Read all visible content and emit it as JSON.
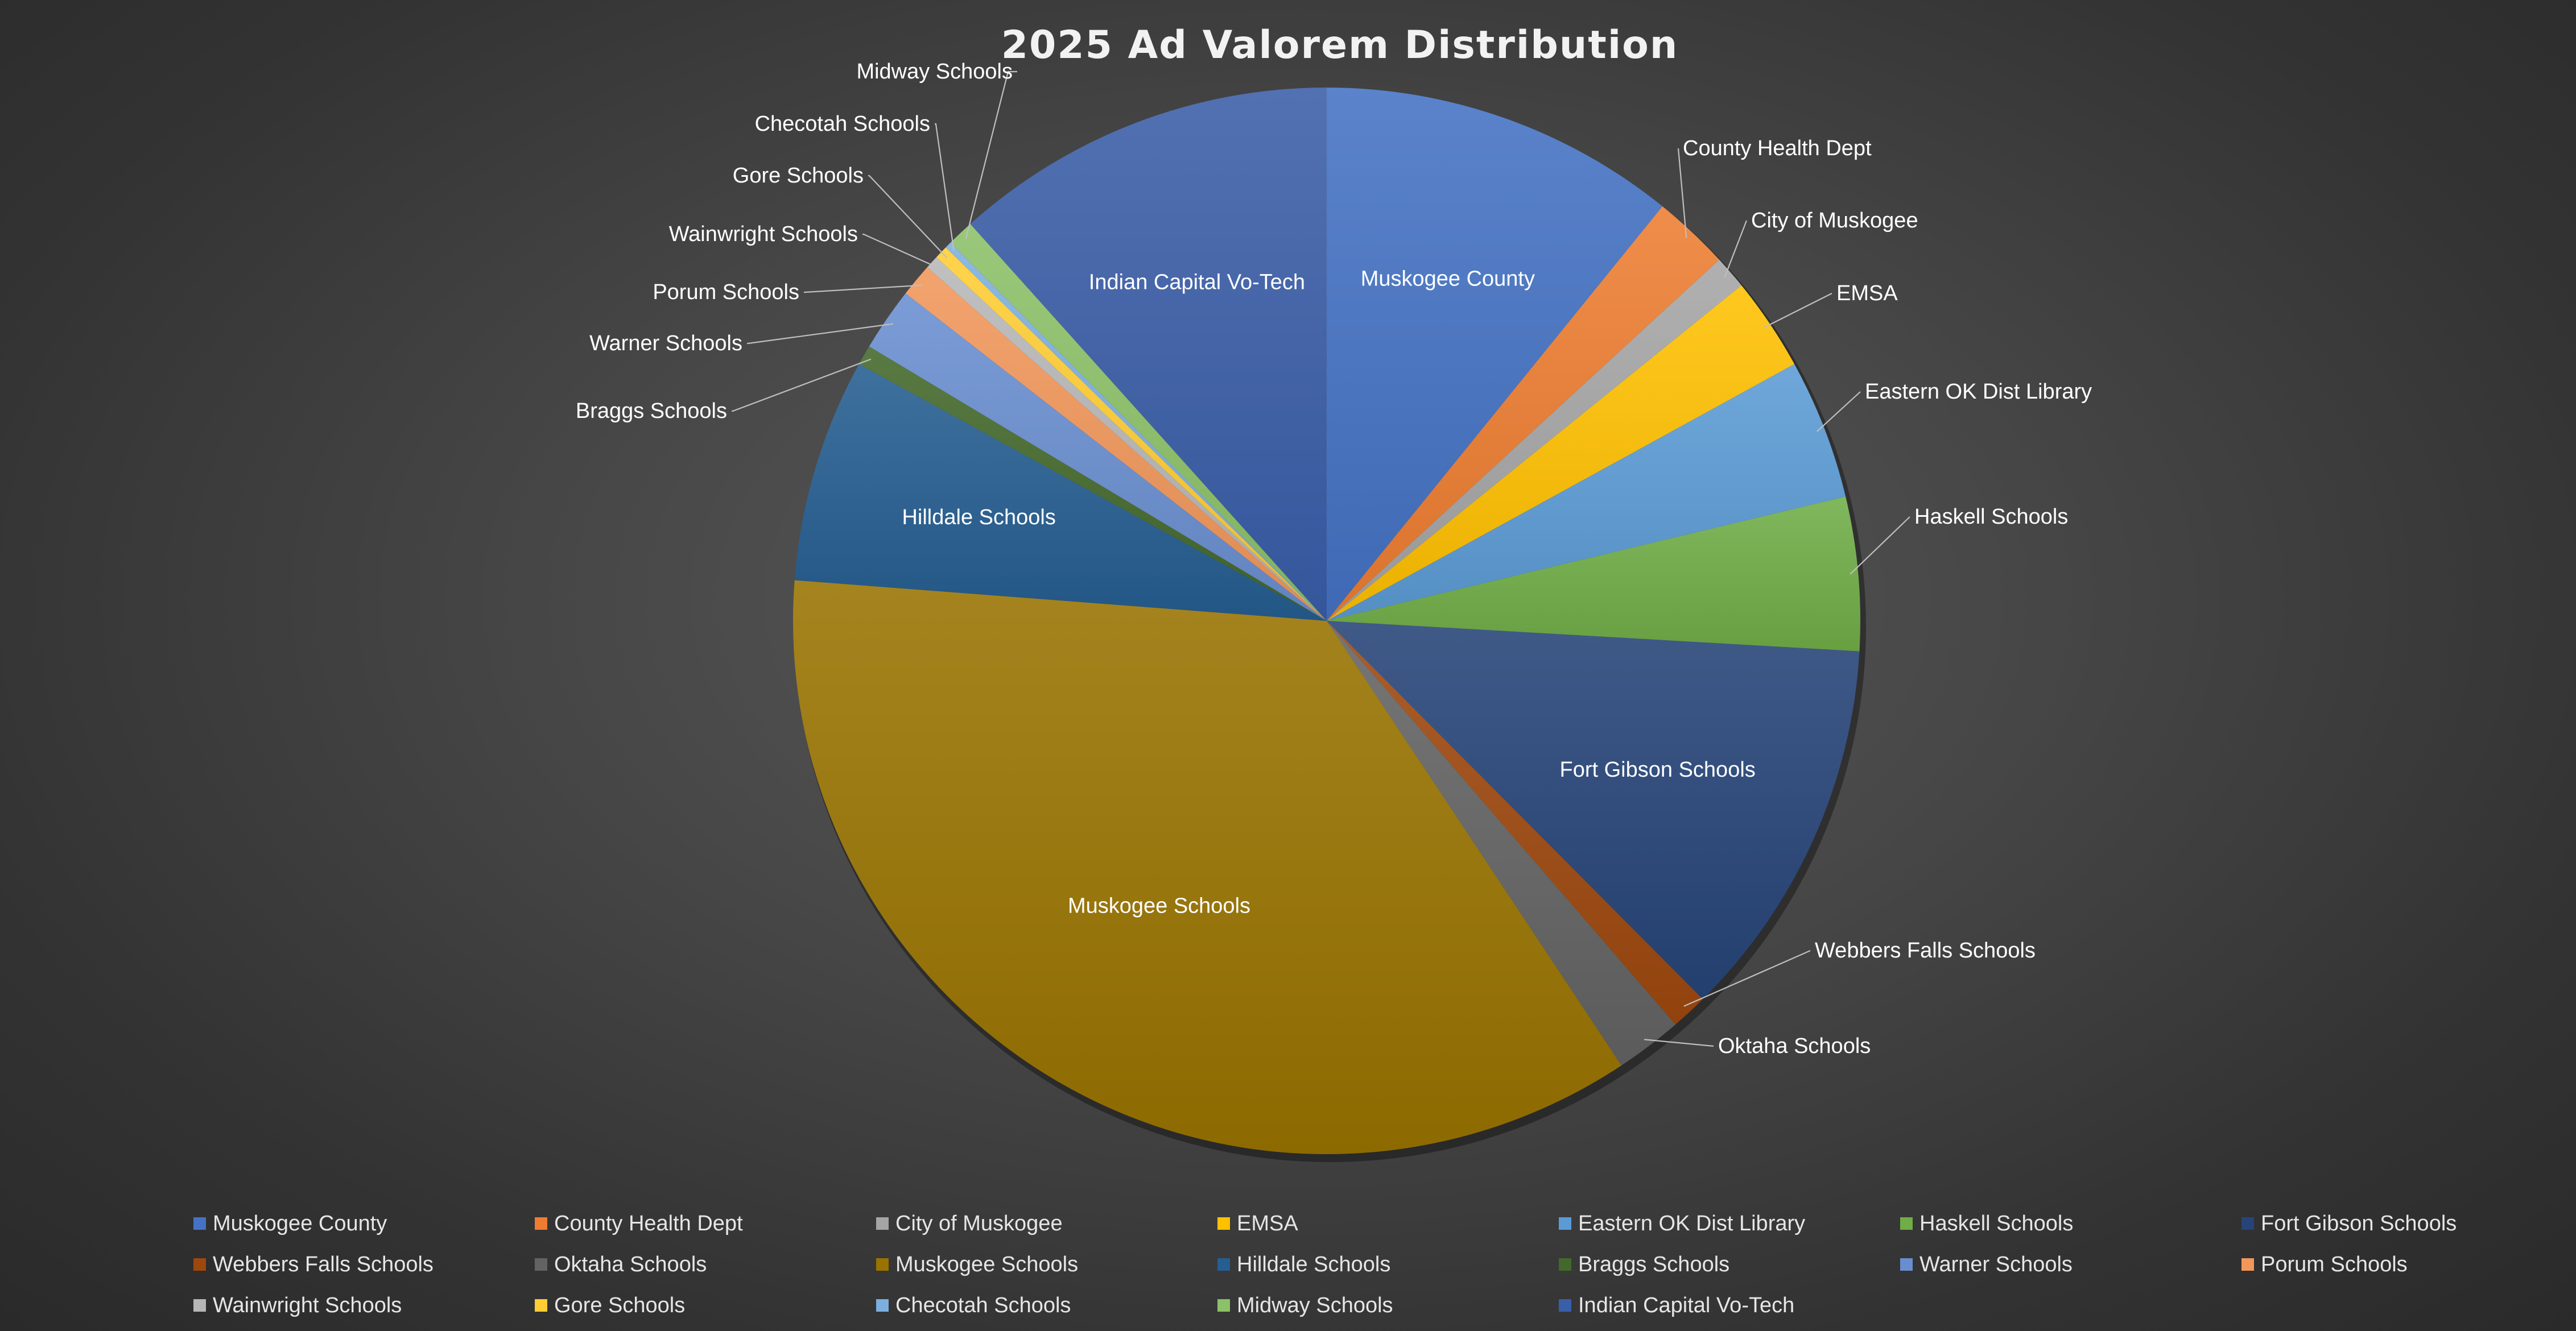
{
  "chart_data": {
    "type": "pie",
    "title": "2025 Ad Valorem Distribution",
    "legend_position": "bottom",
    "slices": [
      {
        "label": "Muskogee County",
        "value": 10.7,
        "color": "#4472c4",
        "label_mode": "inside"
      },
      {
        "label": "County Health Dept",
        "value": 2.3,
        "color": "#ed7d31",
        "label_mode": "outside"
      },
      {
        "label": "City of Muskogee",
        "value": 1.0,
        "color": "#a5a5a5",
        "label_mode": "outside"
      },
      {
        "label": "EMSA",
        "value": 2.8,
        "color": "#ffc000",
        "label_mode": "outside"
      },
      {
        "label": "Eastern OK Dist Library",
        "value": 4.2,
        "color": "#5b9bd5",
        "label_mode": "outside"
      },
      {
        "label": "Haskell Schools",
        "value": 4.6,
        "color": "#70ad47",
        "label_mode": "outside"
      },
      {
        "label": "Fort Gibson Schools",
        "value": 11.5,
        "color": "#264478",
        "label_mode": "inside"
      },
      {
        "label": "Webbers Falls Schools",
        "value": 1.1,
        "color": "#9e480e",
        "label_mode": "outside"
      },
      {
        "label": "Oktaha Schools",
        "value": 2.0,
        "color": "#636363",
        "label_mode": "outside"
      },
      {
        "label": "Muskogee Schools",
        "value": 35.1,
        "color": "#997300",
        "label_mode": "inside"
      },
      {
        "label": "Hilldale Schools",
        "value": 6.7,
        "color": "#255e91",
        "label_mode": "inside"
      },
      {
        "label": "Braggs Schools",
        "value": 0.6,
        "color": "#43682b",
        "label_mode": "outside"
      },
      {
        "label": "Warner Schools",
        "value": 1.9,
        "color": "#698ed0",
        "label_mode": "outside"
      },
      {
        "label": "Porum Schools",
        "value": 1.0,
        "color": "#f1975a",
        "label_mode": "outside"
      },
      {
        "label": "Wainwright Schools",
        "value": 0.4,
        "color": "#b7b7b7",
        "label_mode": "outside"
      },
      {
        "label": "Gore Schools",
        "value": 0.4,
        "color": "#ffcd33",
        "label_mode": "outside"
      },
      {
        "label": "Checotah Schools",
        "value": 0.2,
        "color": "#7cafdd",
        "label_mode": "outside"
      },
      {
        "label": "Midway Schools",
        "value": 0.8,
        "color": "#8cc168",
        "label_mode": "outside"
      },
      {
        "label": "Indian Capital Vo-Tech",
        "value": 11.5,
        "color": "#3a5ea8",
        "label_mode": "inside"
      }
    ]
  }
}
